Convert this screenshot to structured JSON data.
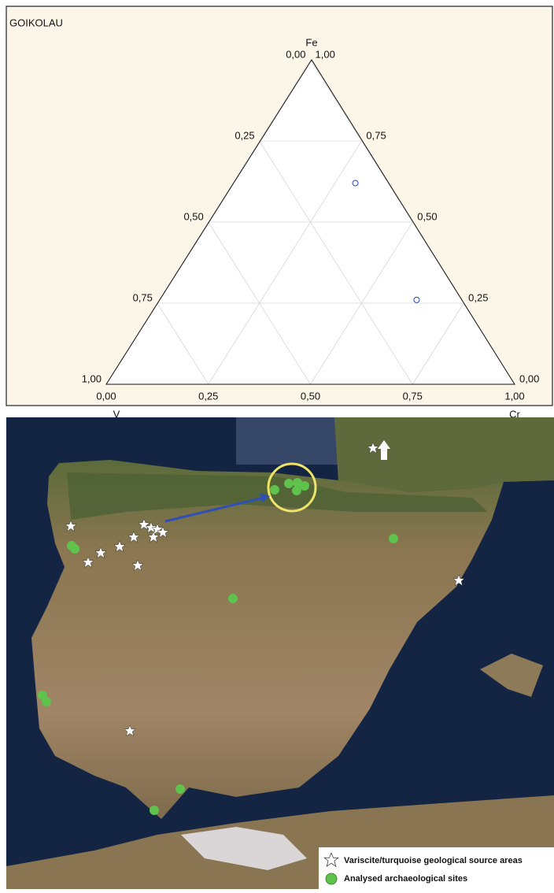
{
  "chart_data": {
    "type": "ternary",
    "title": "GOIKOLAU",
    "axes": {
      "top": "Fe",
      "left": "V",
      "right": "Cr"
    },
    "points": {
      "V": [
        0.08,
        0.11
      ],
      "Fe": [
        0.62,
        0.26
      ],
      "Cr": [
        0.3,
        0.63
      ]
    },
    "color": "#2b4aa8",
    "vticks": [
      {
        "value": 0,
        "label": "0,00"
      },
      {
        "value": 0.25,
        "label": "0,25"
      },
      {
        "value": 0.5,
        "label": "0,50"
      },
      {
        "value": 0.75,
        "label": "0,75"
      },
      {
        "value": 1,
        "label": "1,00"
      }
    ],
    "feticks": [
      {
        "value": 0,
        "label": "0,00"
      },
      {
        "value": 0.25,
        "label": "0,25"
      },
      {
        "value": 0.5,
        "label": "0,50"
      },
      {
        "value": 0.75,
        "label": "0,75"
      },
      {
        "value": 1,
        "label": "1,00"
      }
    ],
    "crticks": [
      {
        "value": 0,
        "label": "0,00"
      },
      {
        "value": 0.25,
        "label": "0,25"
      },
      {
        "value": 0.5,
        "label": "0,50"
      },
      {
        "value": 0.75,
        "label": "0,75"
      },
      {
        "value": 1,
        "label": "1,00"
      }
    ],
    "grid": true
  },
  "map": {
    "legend": [
      "Variscite/turquoise geological source areas",
      "Analysed archaeological sites"
    ]
  }
}
